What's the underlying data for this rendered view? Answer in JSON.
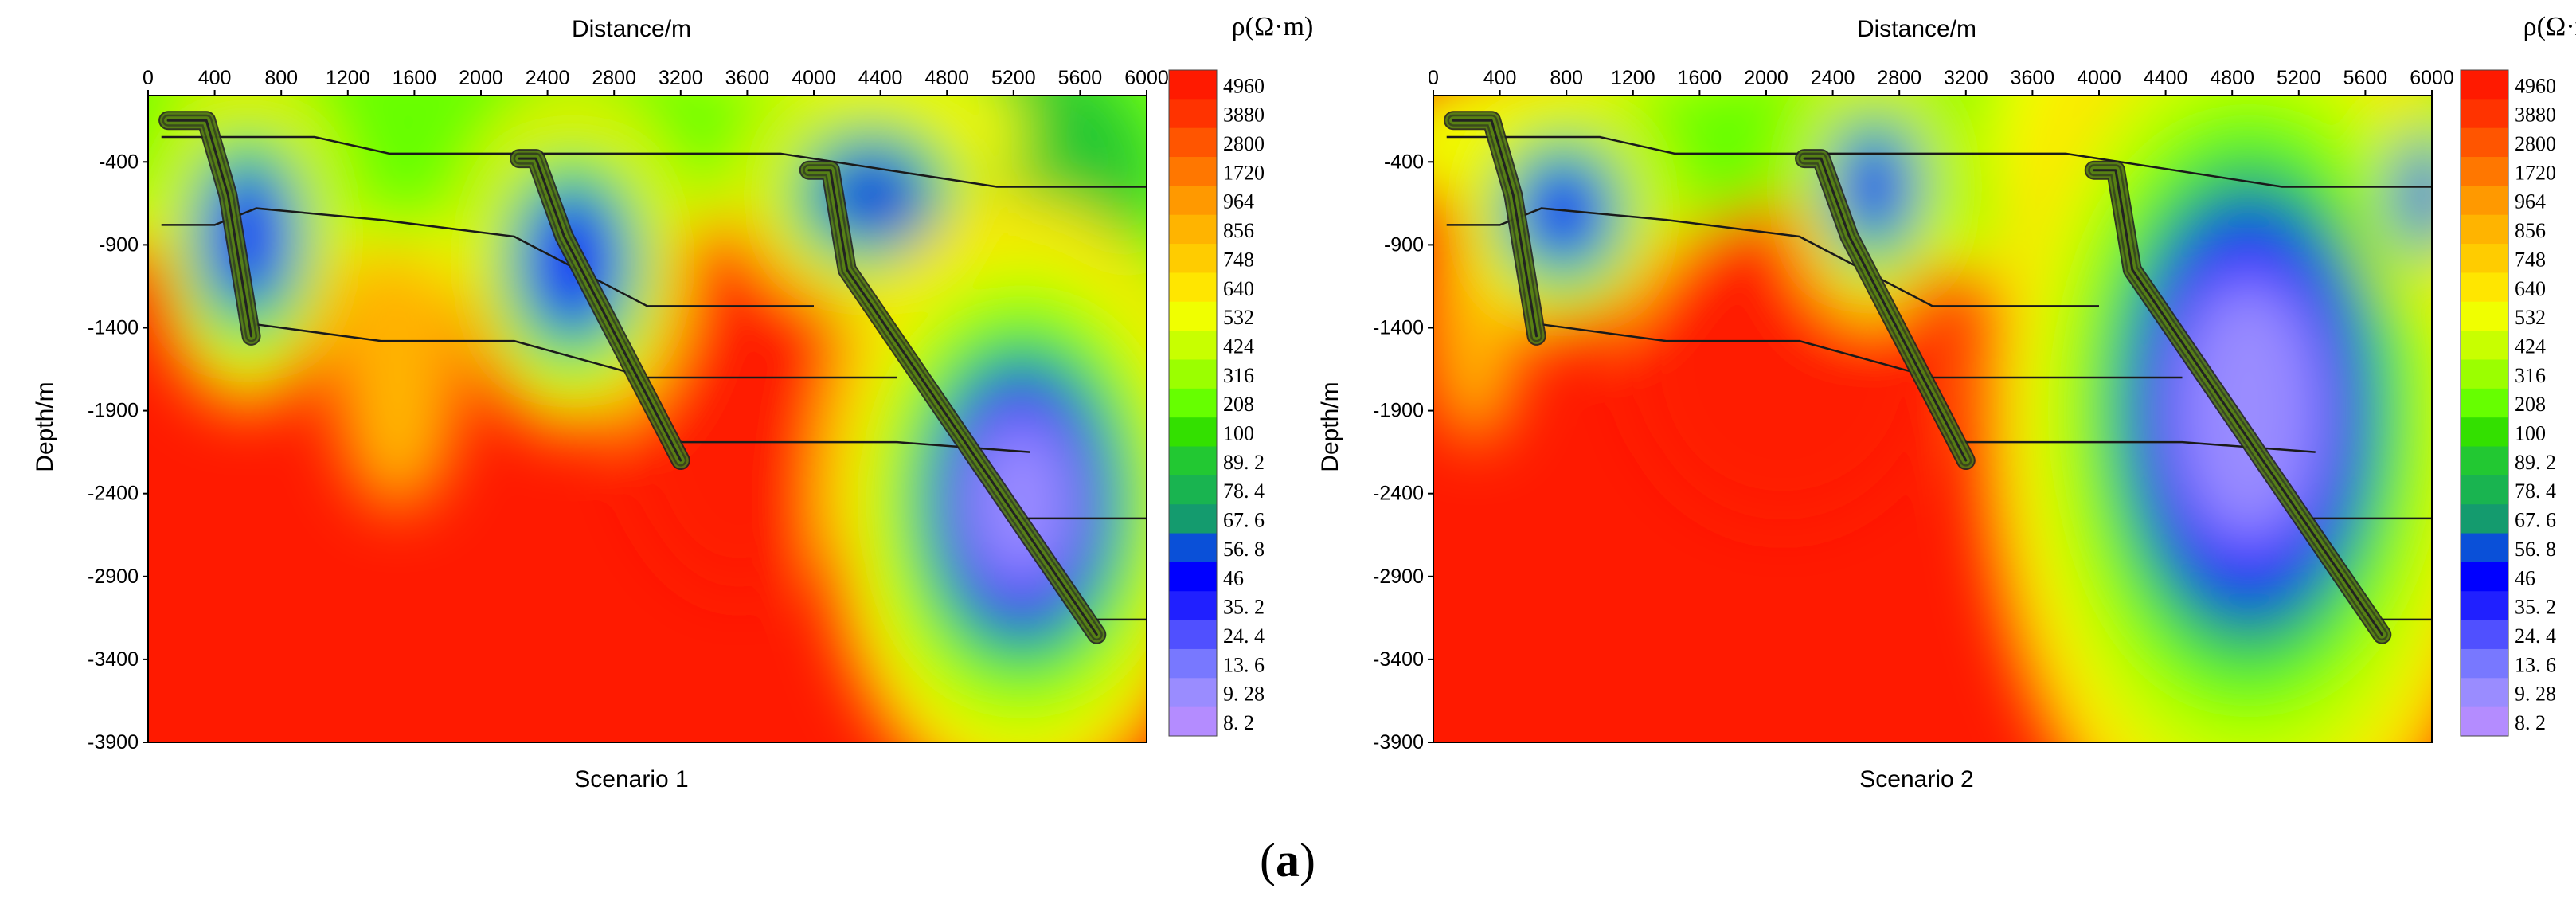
{
  "figure_label": {
    "open": "(",
    "letter": "a",
    "close": ")"
  },
  "colorbar_labels": [
    "4960",
    "3880",
    "2800",
    "1720",
    "964",
    "856",
    "748",
    "640",
    "532",
    "424",
    "316",
    "208",
    "100",
    "89. 2",
    "78. 4",
    "67. 6",
    "56. 8",
    "46",
    "35. 2",
    "24. 4",
    "13. 6",
    "9. 28",
    "8. 2"
  ],
  "colorbar_colors": [
    "#ff1a00",
    "#ff3300",
    "#ff5500",
    "#ff7700",
    "#ff9900",
    "#ffb400",
    "#ffcc00",
    "#ffe600",
    "#f0ff00",
    "#c8ff00",
    "#9bff00",
    "#66ff00",
    "#33e000",
    "#22c832",
    "#19b450",
    "#149b6e",
    "#0a50d8",
    "#0000ff",
    "#2020ff",
    "#5050ff",
    "#7878ff",
    "#9a8cff",
    "#b48cff"
  ],
  "chart_data": [
    {
      "type": "heatmap",
      "title": "Scenario 1",
      "xlabel": "Distance/m",
      "ylabel": "Depth/m",
      "colorbar_title": "ρ(Ω·m)",
      "xlim": [
        0,
        6000
      ],
      "ylim": [
        -3900,
        0
      ],
      "x_ticks": [
        "0",
        "400",
        "800",
        "1200",
        "1600",
        "2000",
        "2400",
        "2800",
        "3200",
        "3600",
        "4000",
        "4400",
        "4800",
        "5200",
        "5600",
        "6000"
      ],
      "y_ticks": [
        "-400",
        "-900",
        "-1400",
        "-1900",
        "-2400",
        "-2900",
        "-3400",
        "-3900"
      ],
      "background_resistivity": 4960,
      "anomalies": [
        {
          "x": 600,
          "depth": 850,
          "rx": 260,
          "ry": 450,
          "rho": 40
        },
        {
          "x": 2550,
          "depth": 1000,
          "rx": 300,
          "ry": 450,
          "rho": 35
        },
        {
          "x": 4350,
          "depth": 600,
          "rx": 350,
          "ry": 300,
          "rho": 60
        },
        {
          "x": 5250,
          "depth": 2450,
          "rx": 520,
          "ry": 800,
          "rho": 10
        },
        {
          "x": 3000,
          "depth": 350,
          "rx": 1300,
          "ry": 450,
          "rho": 150
        },
        {
          "x": 5300,
          "depth": 500,
          "rx": 900,
          "ry": 900,
          "rho": 90
        },
        {
          "x": 1500,
          "depth": 200,
          "rx": 1800,
          "ry": 400,
          "rho": 180
        }
      ],
      "ridge_tops": [
        {
          "x": 1500,
          "depth": 1400,
          "rx": 380,
          "ry": 500,
          "rho": 900
        },
        {
          "x": 3550,
          "depth": 1450,
          "rx": 700,
          "ry": 700,
          "rho": 4960
        }
      ],
      "layer_lines": [
        {
          "x": [
            80,
            1000,
            1450,
            2300,
            3800,
            5100,
            6000
          ],
          "depth": [
            250,
            250,
            350,
            350,
            350,
            550,
            550
          ]
        },
        {
          "x": [
            80,
            400,
            650,
            1400,
            2200,
            3000,
            4000
          ],
          "depth": [
            780,
            780,
            680,
            750,
            850,
            1270,
            1270
          ]
        },
        {
          "x": [
            650,
            1400,
            2200,
            3000,
            4000,
            4500
          ],
          "depth": [
            1380,
            1480,
            1480,
            1700,
            1700,
            1700
          ]
        },
        {
          "x": [
            3100,
            4500,
            5300
          ],
          "depth": [
            2090,
            2090,
            2150
          ]
        },
        {
          "x": [
            5200,
            6000
          ],
          "depth": [
            2550,
            2550
          ]
        },
        {
          "x": [
            5600,
            6000
          ],
          "depth": [
            3160,
            3160
          ]
        }
      ],
      "faults": [
        {
          "x": [
            120,
            350,
            480,
            620
          ],
          "depth": [
            150,
            150,
            600,
            1450
          ]
        },
        {
          "x": [
            2230,
            2330,
            2500,
            3200
          ],
          "depth": [
            380,
            380,
            850,
            2200
          ]
        },
        {
          "x": [
            3970,
            4100,
            4200,
            5700
          ],
          "depth": [
            450,
            450,
            1050,
            3250
          ]
        }
      ]
    },
    {
      "type": "heatmap",
      "title": "Scenario 2",
      "xlabel": "Distance/m",
      "ylabel": "Depth/m",
      "colorbar_title": "ρ(Ω·m)",
      "xlim": [
        0,
        6000
      ],
      "ylim": [
        -3900,
        0
      ],
      "x_ticks": [
        "0",
        "400",
        "800",
        "1200",
        "1600",
        "2000",
        "2400",
        "2800",
        "3200",
        "3600",
        "4000",
        "4400",
        "4800",
        "5200",
        "5600",
        "6000"
      ],
      "y_ticks": [
        "-400",
        "-900",
        "-1400",
        "-1900",
        "-2400",
        "-2900",
        "-3400",
        "-3900"
      ],
      "background_resistivity": 4960,
      "anomalies": [
        {
          "x": 780,
          "depth": 700,
          "rx": 280,
          "ry": 330,
          "rho": 35
        },
        {
          "x": 2650,
          "depth": 550,
          "rx": 220,
          "ry": 350,
          "rho": 30
        },
        {
          "x": 4900,
          "depth": 1900,
          "rx": 700,
          "ry": 1250,
          "rho": 10
        },
        {
          "x": 5950,
          "depth": 600,
          "rx": 150,
          "ry": 300,
          "rho": 40
        },
        {
          "x": 3000,
          "depth": 300,
          "rx": 1600,
          "ry": 400,
          "rho": 160
        },
        {
          "x": 5200,
          "depth": 300,
          "rx": 900,
          "ry": 700,
          "rho": 100
        }
      ],
      "ridge_tops": [
        {
          "x": 2100,
          "depth": 1250,
          "rx": 900,
          "ry": 600,
          "rho": 4960
        },
        {
          "x": 250,
          "depth": 1000,
          "rx": 300,
          "ry": 500,
          "rho": 900
        }
      ],
      "layer_lines": [
        {
          "x": [
            80,
            1000,
            1450,
            2300,
            3800,
            5100,
            6000
          ],
          "depth": [
            250,
            250,
            350,
            350,
            350,
            550,
            550
          ]
        },
        {
          "x": [
            80,
            400,
            650,
            1400,
            2200,
            3000,
            4000
          ],
          "depth": [
            780,
            780,
            680,
            750,
            850,
            1270,
            1270
          ]
        },
        {
          "x": [
            650,
            1400,
            2200,
            3000,
            4000,
            4500
          ],
          "depth": [
            1380,
            1480,
            1480,
            1700,
            1700,
            1700
          ]
        },
        {
          "x": [
            3100,
            4500,
            5300
          ],
          "depth": [
            2090,
            2090,
            2150
          ]
        },
        {
          "x": [
            5200,
            6000
          ],
          "depth": [
            2550,
            2550
          ]
        },
        {
          "x": [
            5600,
            6000
          ],
          "depth": [
            3160,
            3160
          ]
        }
      ],
      "faults": [
        {
          "x": [
            120,
            350,
            480,
            620
          ],
          "depth": [
            150,
            150,
            600,
            1450
          ]
        },
        {
          "x": [
            2230,
            2330,
            2500,
            3200
          ],
          "depth": [
            380,
            380,
            850,
            2200
          ]
        },
        {
          "x": [
            3970,
            4100,
            4200,
            5700
          ],
          "depth": [
            450,
            450,
            1050,
            3250
          ]
        }
      ]
    }
  ]
}
